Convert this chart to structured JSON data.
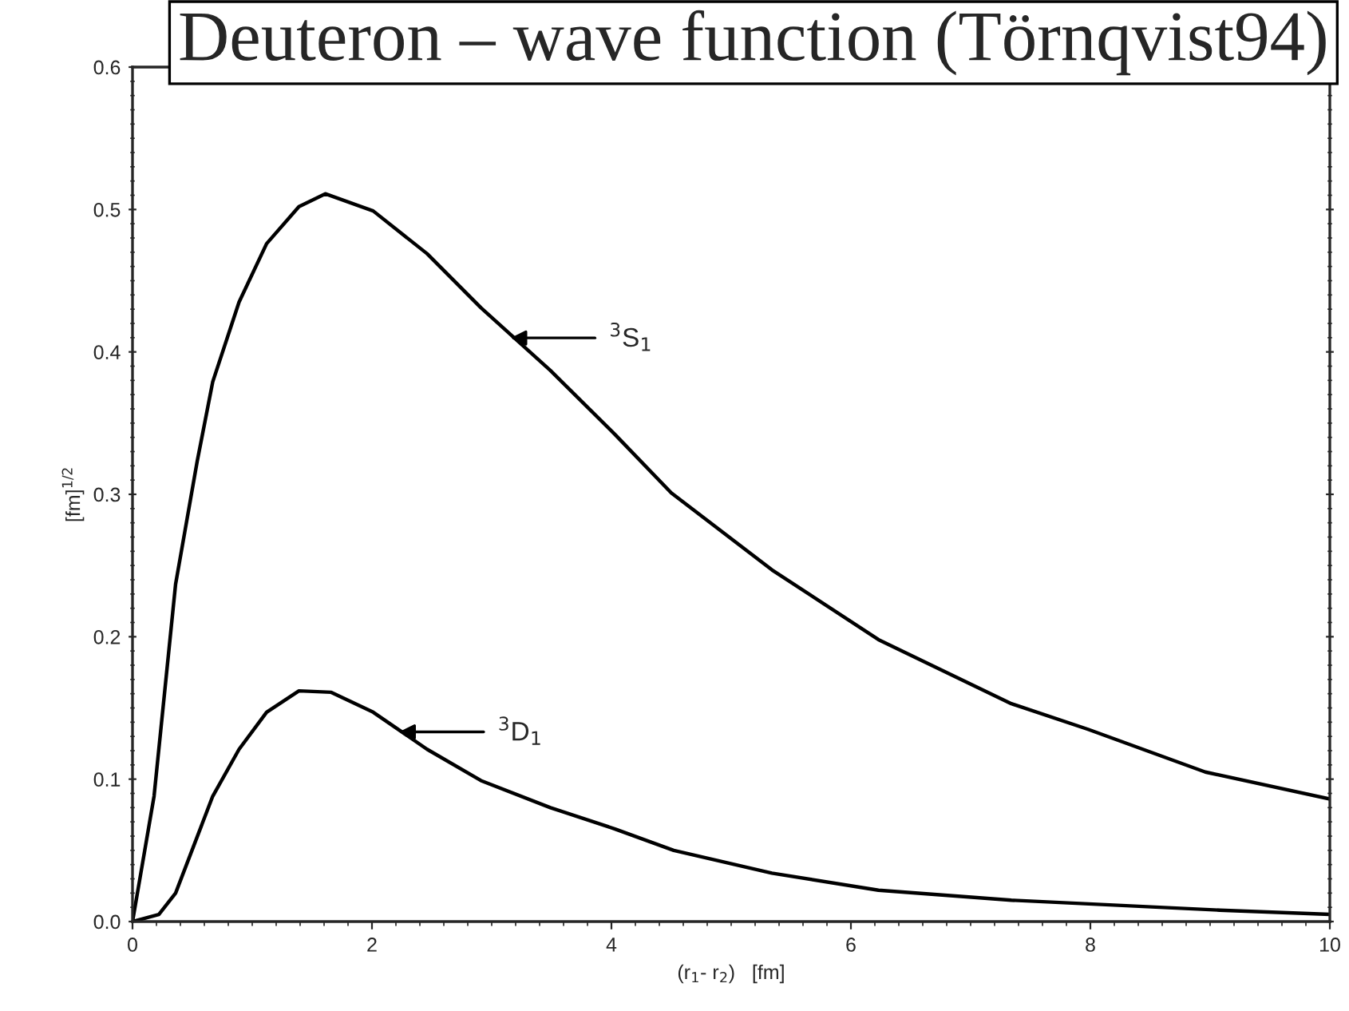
{
  "chart_data": {
    "type": "line",
    "title": "Deuteron – wave function (Törnqvist94)",
    "xlabel": "(r$_{1}$- r$_{2}$)   [fm]",
    "ylabel": "[fm]$^{1/2}$",
    "xlim": [
      0,
      10
    ],
    "ylim": [
      0,
      0.6
    ],
    "xticks": [
      0,
      2,
      4,
      6,
      8,
      10
    ],
    "yticks": [
      {
        "value": 0,
        "label": "0.0"
      },
      {
        "value": 0.1,
        "label": "0.1"
      },
      {
        "value": 0.2,
        "label": "0.2"
      },
      {
        "value": 0.3,
        "label": "0.3"
      },
      {
        "value": 0.4,
        "label": "0.4"
      },
      {
        "value": 0.5,
        "label": "0.5"
      },
      {
        "value": 0.6,
        "label": "0.6"
      }
    ],
    "series": [
      {
        "color": "#000000",
        "x": [
          0,
          0.18,
          0.36,
          0.54,
          0.67,
          0.89,
          1.12,
          1.39,
          1.61,
          2.01,
          2.46,
          2.91,
          3.49,
          4.03,
          4.5,
          5.34,
          6.23,
          7.34,
          7.98,
          8.96,
          10
        ],
        "values": [
          0,
          0.088,
          0.237,
          0.323,
          0.379,
          0.435,
          0.476,
          0.502,
          0.511,
          0.499,
          0.469,
          0.431,
          0.387,
          0.342,
          0.301,
          0.247,
          0.198,
          0.153,
          0.135,
          0.105,
          0.086
        ]
      },
      {
        "color": "#000000",
        "x": [
          0,
          0.22,
          0.36,
          0.67,
          0.89,
          1.12,
          1.39,
          1.66,
          2.01,
          2.46,
          2.91,
          3.49,
          4.03,
          4.52,
          5.34,
          6.23,
          7.34,
          9.08,
          10
        ],
        "values": [
          0,
          0.005,
          0.02,
          0.088,
          0.121,
          0.147,
          0.162,
          0.161,
          0.147,
          0.121,
          0.099,
          0.08,
          0.065,
          0.05,
          0.034,
          0.022,
          0.015,
          0.008,
          0.005
        ]
      }
    ],
    "annotations": [
      "$^{3}$S$_{1}$",
      "$^{3}$D$_{1}$"
    ],
    "grid": false,
    "marker": "none",
    "line_style": "solid"
  }
}
